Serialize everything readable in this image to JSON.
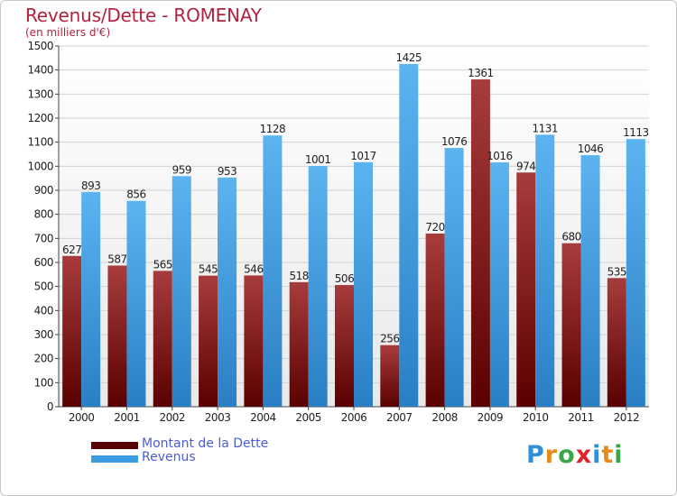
{
  "header": {
    "title": "Revenus/Dette - ROMENAY",
    "subtitle": "(en milliers d'€)"
  },
  "chart_data": {
    "type": "bar",
    "categories": [
      "2000",
      "2001",
      "2002",
      "2003",
      "2004",
      "2005",
      "2006",
      "2007",
      "2008",
      "2009",
      "2010",
      "2011",
      "2012"
    ],
    "series": [
      {
        "name": "Montant de la Dette",
        "color": "#8b1a1a",
        "values": [
          627,
          587,
          565,
          545,
          546,
          518,
          506,
          256,
          720,
          1361,
          974,
          680,
          535
        ]
      },
      {
        "name": "Revenus",
        "color": "#3a9be0",
        "values": [
          893,
          856,
          959,
          953,
          1128,
          1001,
          1017,
          1425,
          1076,
          1016,
          1131,
          1046,
          1113
        ]
      }
    ],
    "title": "Revenus/Dette - ROMENAY",
    "ylabel": "(en milliers d'€)",
    "ylim": [
      0,
      1500
    ],
    "yticks": [
      0,
      100,
      200,
      300,
      400,
      500,
      600,
      700,
      800,
      900,
      1000,
      1100,
      1200,
      1300,
      1400,
      1500
    ],
    "grid": true,
    "legend": "bottom-left"
  },
  "legend": {
    "items": [
      {
        "label": "Montant de la Dette",
        "color": "#6b0f0f"
      },
      {
        "label": "Revenus",
        "color": "#3a9be0"
      }
    ]
  },
  "logo": {
    "text": "Proxiti",
    "letter_colors": [
      "#2f8fd8",
      "#e88a1a",
      "#3aa64a",
      "#e0262b",
      "#2f8fd8",
      "#e88a1a",
      "#3aa64a"
    ]
  }
}
